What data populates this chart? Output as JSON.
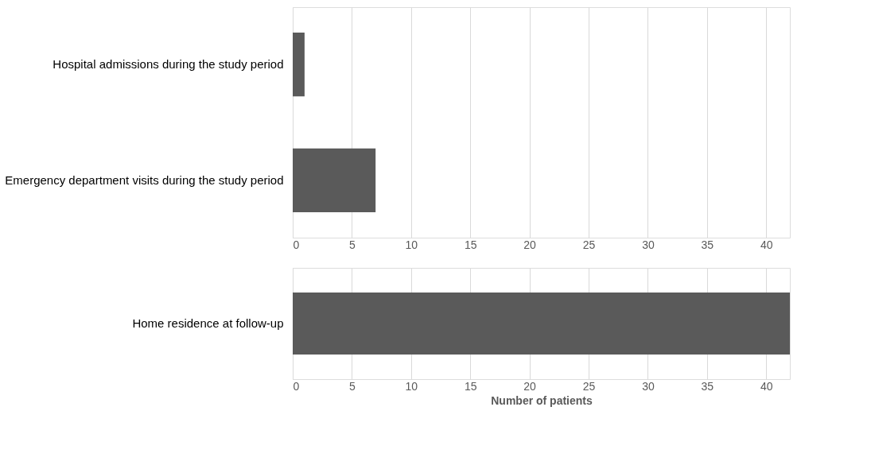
{
  "chart_data": [
    {
      "type": "bar",
      "orientation": "horizontal",
      "categories": [
        "Hospital admissions during the study period",
        "Emergency department visits during the study period"
      ],
      "values": [
        1,
        7
      ],
      "color": "#5a5a5a",
      "xlim": [
        0,
        42
      ],
      "xticks": [
        0,
        5,
        10,
        15,
        20,
        25,
        30,
        35,
        40
      ],
      "grid": "x"
    },
    {
      "type": "bar",
      "orientation": "horizontal",
      "categories": [
        "Home residence at follow-up"
      ],
      "values": [
        42
      ],
      "color": "#5a5a5a",
      "xlim": [
        0,
        42
      ],
      "xticks": [
        0,
        5,
        10,
        15,
        20,
        25,
        30,
        35,
        40
      ],
      "grid": "x",
      "xlabel": "Number of patients"
    }
  ]
}
